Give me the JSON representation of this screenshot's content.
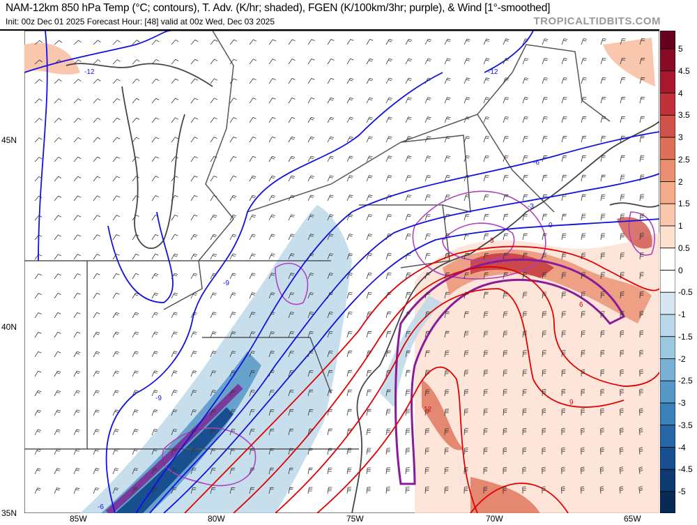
{
  "header": {
    "title": "NAM-12km 850 hPa Temp (°C; contours), T. Adv. (K/hr; shaded), FGEN (K/100km/3hr; purple), & Wind [1°-smoothed]",
    "init": "Init: 00z Dec 01 2025   Forecast Hour: [48]   valid at 00z Wed, Dec 03 2025",
    "watermark": "TROPICALTIDBITS.COM"
  },
  "axes": {
    "lat_labels": [
      "45N",
      "40N",
      "35N"
    ],
    "lon_labels": [
      "85W",
      "80W",
      "75W",
      "70W",
      "65W"
    ]
  },
  "colorbar": {
    "ticks": [
      "5",
      "4.5",
      "4",
      "3.5",
      "3",
      "2.5",
      "2",
      "1.5",
      "1",
      "0.5",
      "0",
      "-0.5",
      "-1",
      "-1.5",
      "-2",
      "-2.5",
      "-3",
      "-3.5",
      "-4",
      "-4.5",
      "-5"
    ],
    "colors": [
      "#67001f",
      "#8a0b25",
      "#a8172e",
      "#c0323a",
      "#d0514a",
      "#de7058",
      "#ea8f6f",
      "#f4ab8a",
      "#f9c7ad",
      "#fde0cf",
      "#ffffff",
      "#ffffff",
      "#d6e6f1",
      "#b9d7e9",
      "#9bc7e0",
      "#78b1d4",
      "#5698c7",
      "#3b80b9",
      "#2767a8",
      "#18508f",
      "#0d3b72",
      "#072b56"
    ]
  },
  "contour_labels": {
    "blue": [
      "-12",
      "-12",
      "-9",
      "-9",
      "-6",
      "-6",
      "-3",
      "0"
    ],
    "red": [
      "3",
      "6",
      "9",
      "12"
    ]
  }
}
